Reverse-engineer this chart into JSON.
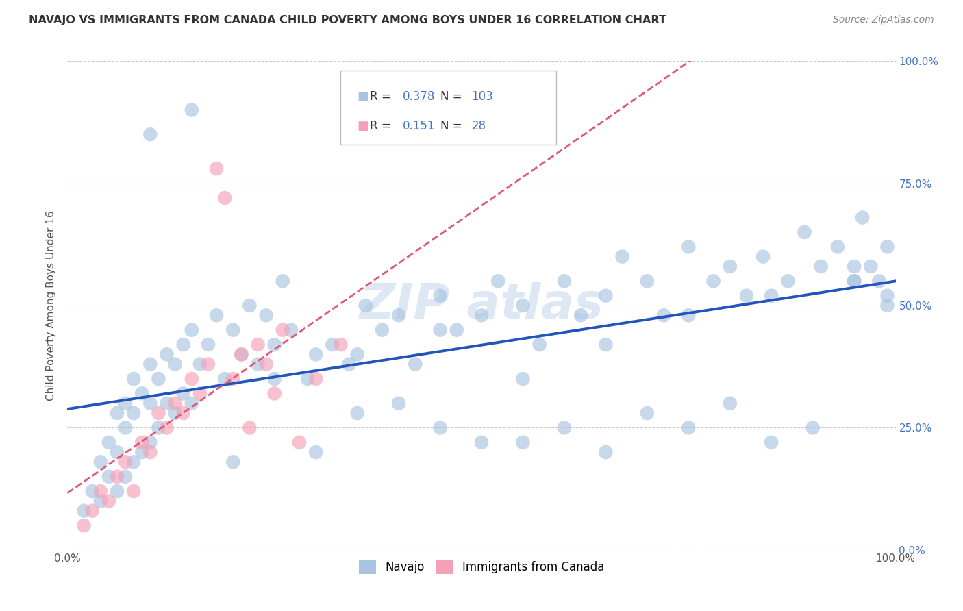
{
  "title": "NAVAJO VS IMMIGRANTS FROM CANADA CHILD POVERTY AMONG BOYS UNDER 16 CORRELATION CHART",
  "source": "Source: ZipAtlas.com",
  "ylabel": "Child Poverty Among Boys Under 16",
  "xlim": [
    0,
    1
  ],
  "ylim": [
    0,
    1
  ],
  "xtick_labels": [
    "0.0%",
    "100.0%"
  ],
  "ytick_labels": [
    "0.0%",
    "25.0%",
    "50.0%",
    "75.0%",
    "100.0%"
  ],
  "ytick_positions": [
    0.0,
    0.25,
    0.5,
    0.75,
    1.0
  ],
  "navajo_R": 0.378,
  "navajo_N": 103,
  "canada_R": 0.151,
  "canada_N": 28,
  "navajo_color": "#a8c4e0",
  "canada_color": "#f4a0b8",
  "navajo_line_color": "#2255bb",
  "canada_line_color": "#e05878",
  "background_color": "#ffffff",
  "grid_color": "#cccccc",
  "right_tick_color": "#4472c4",
  "navajo_x": [
    0.02,
    0.03,
    0.04,
    0.04,
    0.05,
    0.05,
    0.06,
    0.06,
    0.06,
    0.07,
    0.07,
    0.07,
    0.08,
    0.08,
    0.08,
    0.09,
    0.09,
    0.1,
    0.1,
    0.1,
    0.11,
    0.11,
    0.12,
    0.12,
    0.13,
    0.13,
    0.14,
    0.14,
    0.15,
    0.15,
    0.16,
    0.17,
    0.18,
    0.19,
    0.2,
    0.21,
    0.22,
    0.23,
    0.24,
    0.25,
    0.26,
    0.27,
    0.29,
    0.3,
    0.32,
    0.34,
    0.36,
    0.38,
    0.4,
    0.42,
    0.45,
    0.47,
    0.5,
    0.52,
    0.55,
    0.57,
    0.6,
    0.62,
    0.65,
    0.67,
    0.7,
    0.72,
    0.75,
    0.78,
    0.8,
    0.82,
    0.84,
    0.87,
    0.89,
    0.91,
    0.93,
    0.95,
    0.96,
    0.97,
    0.98,
    0.99,
    0.99,
    0.99,
    0.35,
    0.45,
    0.55,
    0.65,
    0.75,
    0.85,
    0.95,
    0.2,
    0.3,
    0.4,
    0.5,
    0.6,
    0.7,
    0.8,
    0.9,
    0.25,
    0.35,
    0.45,
    0.55,
    0.65,
    0.75,
    0.85,
    0.95,
    0.1,
    0.15
  ],
  "navajo_y": [
    0.08,
    0.12,
    0.1,
    0.18,
    0.15,
    0.22,
    0.12,
    0.2,
    0.28,
    0.15,
    0.25,
    0.3,
    0.18,
    0.28,
    0.35,
    0.2,
    0.32,
    0.22,
    0.3,
    0.38,
    0.25,
    0.35,
    0.3,
    0.4,
    0.28,
    0.38,
    0.32,
    0.42,
    0.3,
    0.45,
    0.38,
    0.42,
    0.48,
    0.35,
    0.45,
    0.4,
    0.5,
    0.38,
    0.48,
    0.42,
    0.55,
    0.45,
    0.35,
    0.4,
    0.42,
    0.38,
    0.5,
    0.45,
    0.48,
    0.38,
    0.52,
    0.45,
    0.48,
    0.55,
    0.5,
    0.42,
    0.55,
    0.48,
    0.52,
    0.6,
    0.55,
    0.48,
    0.62,
    0.55,
    0.58,
    0.52,
    0.6,
    0.55,
    0.65,
    0.58,
    0.62,
    0.55,
    0.68,
    0.58,
    0.55,
    0.62,
    0.5,
    0.52,
    0.28,
    0.25,
    0.22,
    0.2,
    0.25,
    0.22,
    0.55,
    0.18,
    0.2,
    0.3,
    0.22,
    0.25,
    0.28,
    0.3,
    0.25,
    0.35,
    0.4,
    0.45,
    0.35,
    0.42,
    0.48,
    0.52,
    0.58,
    0.85,
    0.9
  ],
  "canada_x": [
    0.02,
    0.03,
    0.04,
    0.05,
    0.06,
    0.07,
    0.08,
    0.09,
    0.1,
    0.11,
    0.12,
    0.13,
    0.14,
    0.15,
    0.16,
    0.17,
    0.18,
    0.19,
    0.2,
    0.21,
    0.22,
    0.23,
    0.24,
    0.25,
    0.26,
    0.28,
    0.3,
    0.33
  ],
  "canada_y": [
    0.05,
    0.08,
    0.12,
    0.1,
    0.15,
    0.18,
    0.12,
    0.22,
    0.2,
    0.28,
    0.25,
    0.3,
    0.28,
    0.35,
    0.32,
    0.38,
    0.78,
    0.72,
    0.35,
    0.4,
    0.25,
    0.42,
    0.38,
    0.32,
    0.45,
    0.22,
    0.35,
    0.42
  ]
}
